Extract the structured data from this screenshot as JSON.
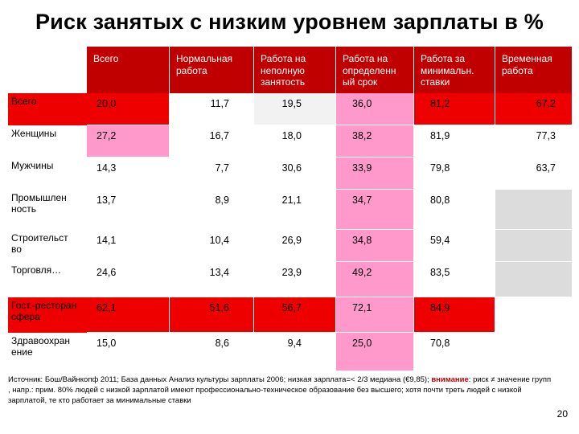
{
  "title": "Риск занятых с низким уровнем зарплаты в %",
  "columns": [
    "Всего",
    "Нормальная работа",
    "Работа на неполную занятость",
    "Работа на определенный срок",
    "Работа за минимальн. ставки",
    "Временная работа"
  ],
  "columns_display": [
    "Всего",
    "Нормальная\nработа",
    "Работа на\nнеполную\nзанятость",
    "Работа на\nопределенн\nый срок",
    "Работа за\nминимальн.\nставки",
    "Временная\nработа"
  ],
  "rows": [
    {
      "label": "Всего",
      "values": [
        "20,0",
        "11,7",
        "19,5",
        "36,0",
        "81,2",
        "67,2"
      ]
    },
    {
      "label": "Женщины",
      "values": [
        "27,2",
        "16,7",
        "18,0",
        "38,2",
        "81,9",
        "77,3"
      ]
    },
    {
      "label": "Мужчины",
      "values": [
        "14,3",
        "7,7",
        "30,6",
        "33,9",
        "79,8",
        "63,7"
      ]
    },
    {
      "label": "Промышленность",
      "label_display": "Промышлен\nность",
      "values": [
        "13,7",
        "8,9",
        "21,1",
        "34,7",
        "80,8",
        ""
      ]
    },
    {
      "label": "Строительство",
      "label_display": "Строительст\nво",
      "values": [
        "14,1",
        "10,4",
        "26,9",
        "34,8",
        "59,4",
        ""
      ]
    },
    {
      "label": "Торговля…",
      "values": [
        "24,6",
        "13,4",
        "23,9",
        "49,2",
        "83,5",
        ""
      ]
    },
    {
      "label": "Гост.-ресторан сфера",
      "label_display": "Гост.-ресторан\nсфера",
      "values": [
        "62,1",
        "51,6",
        "56,7",
        "72,1",
        "84,9",
        ""
      ]
    },
    {
      "label": "Здравоохранение",
      "label_display": "Здравоохран\nение",
      "values": [
        "15,0",
        "8,6",
        "9,4",
        "25,0",
        "70,8",
        ""
      ]
    }
  ],
  "colors": {
    "header": "#c00000",
    "red": "#ee0000",
    "pink": "#ff99cc",
    "gray": "#dcdcdc",
    "light": "#f2f2f2",
    "white": "#ffffff"
  },
  "cell_fills": [
    [
      "red",
      "white",
      "light",
      "pink",
      "red",
      "red"
    ],
    [
      "pink",
      "white",
      "white",
      "pink",
      "white",
      "white"
    ],
    [
      "white",
      "white",
      "white",
      "pink",
      "white",
      "white"
    ],
    [
      "white",
      "white",
      "white",
      "pink",
      "white",
      "gray"
    ],
    [
      "white",
      "white",
      "white",
      "pink",
      "white",
      "gray"
    ],
    [
      "white",
      "white",
      "white",
      "pink",
      "white",
      "gray"
    ],
    [
      "red",
      "red",
      "red",
      "pink",
      "red",
      "white"
    ],
    [
      "white",
      "white",
      "white",
      "pink",
      "white",
      "white"
    ]
  ],
  "source": {
    "prefix": "Источник: Бош/Вайнкопф 2011; База данных Анализ культуры зарплаты 2006; низкая зарплата=< 2/3 медиана (€9,85); ",
    "warning": "внимание",
    "suffix": ": риск ≠ значение групп , напр.: прим. 80% людей с низкой зарплатой имеют профессионально-техническое образование без высшего; хотя почти треть людей с низкой зарплатой, те кто работает за минимальные ставки"
  },
  "page_number": "20"
}
